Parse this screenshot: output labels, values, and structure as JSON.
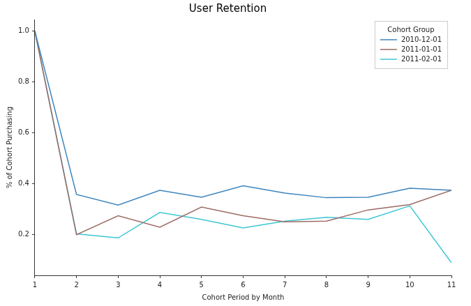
{
  "chart_data": {
    "type": "line",
    "title": "User Retention",
    "x_label": "Cohort Period by Month",
    "y_label": "% of Cohort Purchasing",
    "x": [
      1,
      2,
      3,
      4,
      5,
      6,
      7,
      8,
      9,
      10,
      11
    ],
    "series": [
      {
        "name": "2010-12-01",
        "color": "#3c84bd",
        "values": [
          1.0,
          0.358,
          0.316,
          0.374,
          0.347,
          0.392,
          0.363,
          0.345,
          0.347,
          0.382,
          0.374
        ]
      },
      {
        "name": "2011-01-01",
        "color": "#9c6b64",
        "values": [
          1.0,
          0.2,
          0.274,
          0.229,
          0.308,
          0.274,
          0.25,
          0.253,
          0.297,
          0.318,
          0.374
        ]
      },
      {
        "name": "2011-02-01",
        "color": "#3ec6d4",
        "values": [
          1.0,
          0.203,
          0.187,
          0.287,
          0.26,
          0.226,
          0.253,
          0.268,
          0.26,
          0.313,
          0.089
        ]
      }
    ],
    "xlim": [
      1,
      11
    ],
    "xticks": [
      1,
      2,
      3,
      4,
      5,
      6,
      7,
      8,
      9,
      10,
      11
    ],
    "ylim": [
      0.04,
      1.045
    ],
    "yticks": [
      0.2,
      0.4,
      0.6,
      0.8,
      {
        "value": 1,
        "label": "1.0"
      }
    ],
    "grid": false,
    "legend": "upper right",
    "legend_title": "Cohort Group"
  }
}
